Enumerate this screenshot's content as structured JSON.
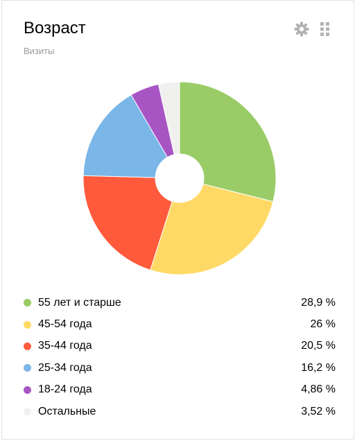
{
  "header": {
    "title": "Возраст",
    "subtitle": "Визиты",
    "settings_icon": "gear-icon",
    "drag_icon": "drag-handle-icon"
  },
  "chart_data": {
    "type": "pie",
    "donut": true,
    "categories": [
      "55 лет и старше",
      "45-54 года",
      "35-44 года",
      "25-34 года",
      "18-24 года",
      "Остальные"
    ],
    "values": [
      28.9,
      26,
      20.5,
      16.2,
      4.86,
      3.52
    ],
    "value_labels": [
      "28,9 %",
      "26 %",
      "20,5 %",
      "16,2 %",
      "4,86 %",
      "3,52 %"
    ],
    "colors": [
      "#99cc66",
      "#ffd966",
      "#ff5a3c",
      "#7ab6e8",
      "#a855c4",
      "#f0f0ee"
    ],
    "legend_placement": "bottom"
  }
}
